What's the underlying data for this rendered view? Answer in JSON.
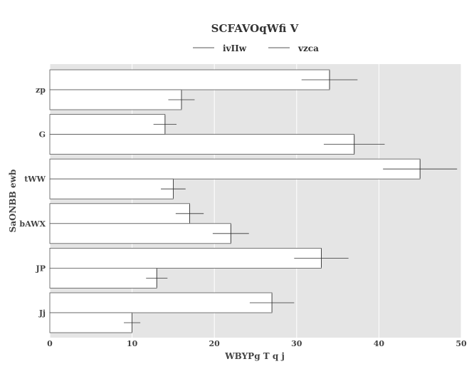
{
  "chart_data": {
    "type": "bar",
    "orientation": "horizontal",
    "title": "SCFAVOqWfi V",
    "xlabel": "WBYPg T q j",
    "ylabel": "SaONBB ewb",
    "categories": [
      "zp",
      "G",
      "tWW",
      "bAWX",
      "JP",
      "Jj"
    ],
    "series": [
      {
        "name": "ivIIw",
        "values": [
          34,
          14,
          45,
          17,
          33,
          27
        ],
        "errors": [
          3.4,
          1.4,
          4.5,
          1.7,
          3.3,
          2.7
        ],
        "color": "#ffffff"
      },
      {
        "name": "vzca",
        "values": [
          16,
          37,
          15,
          22,
          13,
          10
        ],
        "errors": [
          1.6,
          3.7,
          1.5,
          2.2,
          1.3,
          1.0
        ],
        "color": "#ffffff"
      }
    ],
    "xlim": [
      0,
      50
    ],
    "xticks": [
      0,
      10,
      20,
      30,
      40,
      50
    ],
    "grid": true,
    "legend_position": "top",
    "colors": {
      "plot_background": "#e5e5e5",
      "grid": "#ffffff",
      "bar_edge": "#555555",
      "error_bar": "#333333"
    }
  }
}
